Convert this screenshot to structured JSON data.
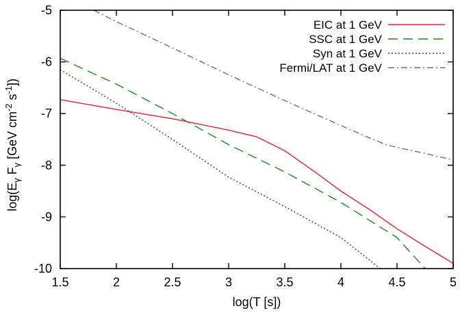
{
  "chart_data": {
    "type": "line",
    "title": "",
    "xlabel": "log(T [s])",
    "ylabel": "log(Eγ Fγ [GeV cm⁻² s⁻¹])",
    "ylabel_parts": {
      "prefix": "log(E",
      "sub1": "γ",
      "mid": " F",
      "sub2": "γ",
      "units_open": " [GeV cm",
      "exp1": "-2",
      "units_mid": " s",
      "exp2": "-1",
      "units_close": "])"
    },
    "xlim": [
      1.5,
      5
    ],
    "ylim": [
      -10,
      -5
    ],
    "xticks": [
      1.5,
      2,
      2.5,
      3,
      3.5,
      4,
      4.5,
      5
    ],
    "xtick_labels": [
      "1.5",
      "2",
      "2.5",
      "3",
      "3.5",
      "4",
      "4.5",
      "5"
    ],
    "yticks": [
      -10,
      -9,
      -8,
      -7,
      -6,
      -5
    ],
    "ytick_labels": [
      "-10",
      "-9",
      "-8",
      "-7",
      "-6",
      "-5"
    ],
    "grid": false,
    "legend_position": "top-right",
    "series": [
      {
        "name": "EIC at 1 GeV",
        "color": "#e8202a",
        "dash": "solid",
        "points": [
          [
            1.5,
            -6.73
          ],
          [
            2.0,
            -6.92
          ],
          [
            2.5,
            -7.1
          ],
          [
            3.0,
            -7.32
          ],
          [
            3.25,
            -7.45
          ],
          [
            3.5,
            -7.72
          ],
          [
            3.75,
            -8.1
          ],
          [
            4.0,
            -8.5
          ],
          [
            4.25,
            -8.85
          ],
          [
            4.5,
            -9.23
          ],
          [
            4.75,
            -9.57
          ],
          [
            5.0,
            -9.9
          ]
        ]
      },
      {
        "name": "SSC at 1 GeV",
        "color": "#1a8a1a",
        "dash": "long-dash",
        "points": [
          [
            1.5,
            -5.93
          ],
          [
            2.0,
            -6.43
          ],
          [
            2.5,
            -7.0
          ],
          [
            3.0,
            -7.6
          ],
          [
            3.5,
            -8.13
          ],
          [
            4.0,
            -8.72
          ],
          [
            4.5,
            -9.4
          ],
          [
            4.75,
            -10.0
          ]
        ]
      },
      {
        "name": "Syn at 1 GeV",
        "color": "#2b2bd9",
        "dash": "dotted",
        "points": [
          [
            1.5,
            -6.15
          ],
          [
            2.0,
            -6.8
          ],
          [
            2.5,
            -7.5
          ],
          [
            3.0,
            -8.23
          ],
          [
            3.5,
            -8.8
          ],
          [
            4.0,
            -9.4
          ],
          [
            4.35,
            -10.0
          ]
        ]
      },
      {
        "name": "Fermi/LAT at 1 GeV",
        "color": "#707070",
        "dash": "dash-dot",
        "points": [
          [
            1.8,
            -5.0
          ],
          [
            2.0,
            -5.22
          ],
          [
            2.5,
            -5.73
          ],
          [
            3.0,
            -6.25
          ],
          [
            3.5,
            -6.75
          ],
          [
            4.0,
            -7.23
          ],
          [
            4.2,
            -7.42
          ],
          [
            4.4,
            -7.6
          ],
          [
            4.55,
            -7.68
          ],
          [
            4.75,
            -7.77
          ],
          [
            5.0,
            -7.9
          ]
        ]
      }
    ]
  }
}
